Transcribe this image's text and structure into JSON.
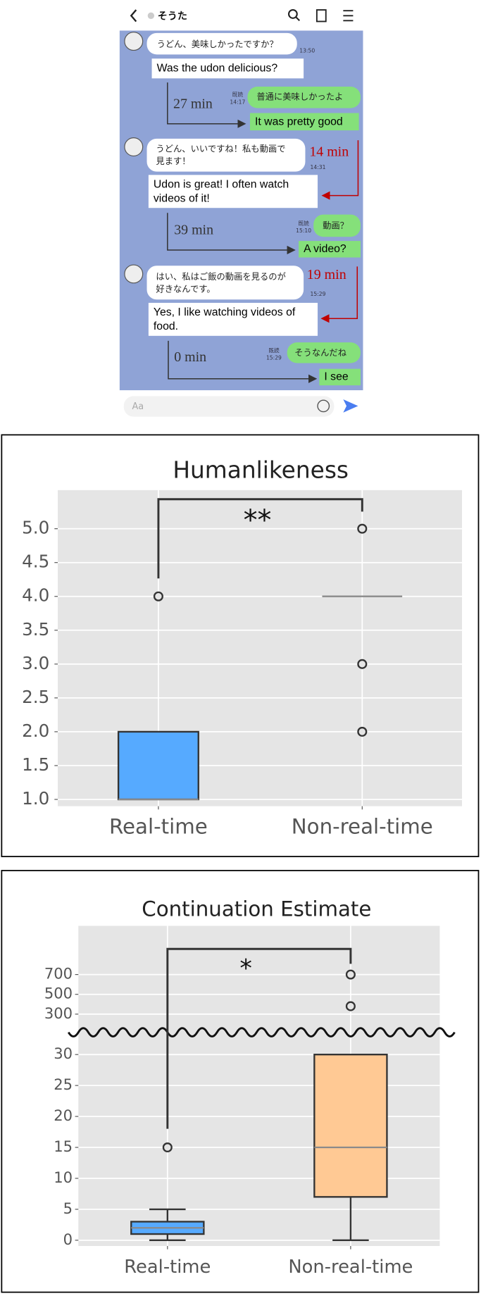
{
  "chat": {
    "header_name": "そうた",
    "input_placeholder": "Aa",
    "messages": [
      {
        "text": [
          "うどん、美味しかったですか？"
        ],
        "time": "13:50",
        "translation": [
          "Was the udon delicious?"
        ]
      },
      {
        "delay": "27 min",
        "text": [
          "普通に美味しかったよ"
        ],
        "read": "既読",
        "time": "14:17",
        "translation": [
          "It was pretty good"
        ]
      },
      {
        "delay": "14 min",
        "text": [
          "うどん、いいですね！私も動画で",
          "見ます！"
        ],
        "time": "14:31",
        "translation": [
          "Udon is great! I often watch",
          "videos of it!"
        ]
      },
      {
        "delay": "39 min",
        "text": [
          "動画？"
        ],
        "read": "既読",
        "time": "15:10",
        "translation": [
          "A video?"
        ]
      },
      {
        "delay": "19 min",
        "text": [
          "はい、私はご飯の動画を見るのが",
          "好きなんです。"
        ],
        "time": "15:29",
        "translation": [
          "Yes, I like watching videos of",
          "food."
        ]
      },
      {
        "delay": "0 min",
        "text": [
          "そうなんだね"
        ],
        "read": "既読",
        "time": "15:29",
        "translation": [
          "I see"
        ]
      }
    ]
  },
  "chart_data": [
    {
      "type": "box",
      "title": "Humanlikeness",
      "categories": [
        "Real-time",
        "Non-real-time"
      ],
      "boxes": [
        {
          "color": "#56aaff",
          "whisker_low": 1,
          "q1": 1,
          "median": 1,
          "q3": 2,
          "whisker_high": 2,
          "outliers": [
            4
          ]
        },
        {
          "color": "#ffc994",
          "whisker_low": 4,
          "q1": 4,
          "median": 4,
          "q3": 4,
          "whisker_high": 4,
          "outliers": [
            5,
            3,
            2
          ]
        }
      ],
      "ylim": [
        0.9,
        5.57
      ],
      "yticks": [
        {
          "value": 1,
          "label": "1.0"
        },
        1.5,
        {
          "value": 2,
          "label": "2.0"
        },
        2.5,
        {
          "value": 3,
          "label": "3.0"
        },
        3.5,
        {
          "value": 4,
          "label": "4.0"
        },
        4.5,
        {
          "value": 5,
          "label": "5.0"
        }
      ],
      "grid": true,
      "significance": "**"
    },
    {
      "type": "box",
      "title": "Continuation Estimate",
      "categories": [
        "Real-time",
        "Non-real-time"
      ],
      "boxes": [
        {
          "color": "#56aaff",
          "whisker_low": 0,
          "q1": 1,
          "median": 2,
          "q3": 3,
          "whisker_high": 5,
          "outliers": [
            15
          ]
        },
        {
          "color": "#ffc994",
          "whisker_low": 0,
          "q1": 7,
          "median": 15,
          "q3": 30,
          "whisker_high": 30,
          "outliers": [
            380,
            700
          ]
        }
      ],
      "ylim": [
        -0.93,
        33.33
      ],
      "yticks": [
        0,
        5,
        10,
        15,
        20,
        25,
        30
      ],
      "upper_ylim": [
        100,
        1192
      ],
      "upper_yticks": [
        300,
        500,
        700
      ],
      "axis_break": true,
      "grid": true,
      "significance": "*"
    }
  ]
}
